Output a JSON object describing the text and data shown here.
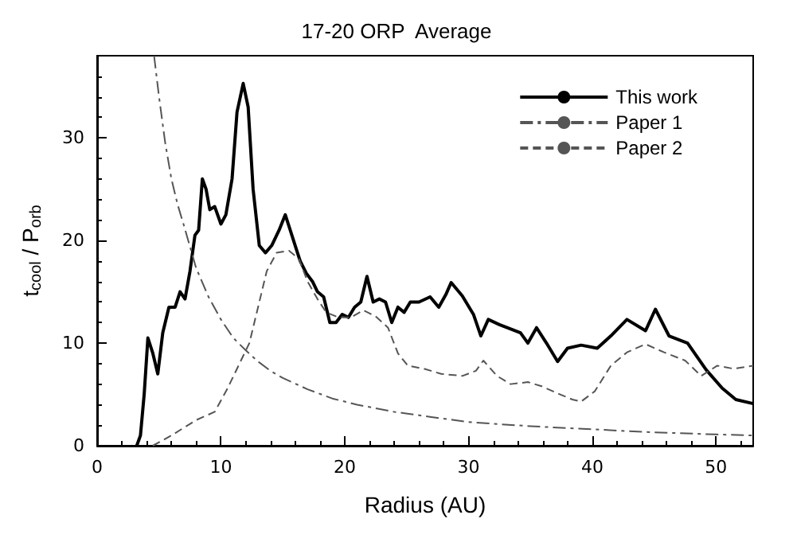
{
  "chart_data": {
    "type": "line",
    "title": "17-20 ORP  Average",
    "xlabel": "Radius (AU)",
    "ylabel": "t$_{cool}$ / P$_{orb}$",
    "xlim": [
      0,
      53
    ],
    "xticks": [
      0,
      10,
      20,
      30,
      40,
      50
    ],
    "ylim": [
      0,
      38
    ],
    "yticks": [
      0,
      10,
      20,
      30
    ],
    "grid": false,
    "legend": "top right",
    "marker": "none",
    "series": [
      {
        "name": "This work",
        "color": "#000000",
        "line_style": "solid",
        "x": [
          3.2,
          3.5,
          3.8,
          4.1,
          4.5,
          4.9,
          5.3,
          5.8,
          6.3,
          6.7,
          7.1,
          7.5,
          7.9,
          8.2,
          8.5,
          8.8,
          9.1,
          9.5,
          10,
          10.4,
          10.9,
          11.3,
          11.8,
          12.2,
          12.6,
          13.1,
          13.6,
          14.1,
          14.7,
          15.2,
          15.6,
          16,
          16.4,
          16.9,
          17.4,
          17.8,
          18.3,
          18.8,
          19.3,
          19.8,
          20.3,
          20.8,
          21.3,
          21.8,
          22.3,
          22.8,
          23.3,
          23.8,
          24.3,
          24.8,
          25.3,
          26,
          26.9,
          27.6,
          28.2,
          28.6,
          29.5,
          30.4,
          31,
          31.6,
          32.5,
          34.2,
          34.8,
          35.5,
          36.3,
          37.2,
          38,
          39.1,
          40.4,
          41.5,
          42.8,
          44.3,
          45.1,
          46.2,
          47.7,
          49.2,
          50.5,
          51.6,
          53
        ],
        "values": [
          0,
          1,
          5,
          10.5,
          9,
          7,
          11,
          13.5,
          13.5,
          15,
          14.3,
          17,
          20.5,
          21,
          26,
          25,
          23,
          23.3,
          21.6,
          22.5,
          26,
          32.5,
          35.3,
          33,
          25,
          19.5,
          18.8,
          19.5,
          21,
          22.5,
          21,
          19.5,
          18,
          16.8,
          16,
          15,
          14.5,
          12,
          12,
          12.8,
          12.5,
          13.5,
          14,
          16.5,
          14,
          14.3,
          14,
          12,
          13.5,
          13,
          14,
          14,
          14.5,
          13.5,
          14.8,
          15.9,
          14.6,
          12.8,
          10.7,
          12.3,
          11.8,
          11,
          10,
          11.5,
          10,
          8.2,
          9.5,
          9.8,
          9.5,
          10.7,
          12.3,
          11.2,
          13.3,
          10.7,
          10,
          7.4,
          5.6,
          4.5,
          4.1
        ]
      },
      {
        "name": "Paper 1",
        "color": "#555555",
        "line_style": "dashdot",
        "x": [
          4.6,
          5,
          5.5,
          6,
          6.5,
          7,
          8,
          9,
          10,
          11,
          12,
          13,
          14,
          15,
          17,
          19,
          21,
          24,
          27,
          30,
          35,
          40,
          45,
          50,
          53
        ],
        "values": [
          38,
          34,
          29.5,
          26,
          23.5,
          21.5,
          17.3,
          14.5,
          12.3,
          10.5,
          9.3,
          8.2,
          7.3,
          6.6,
          5.5,
          4.6,
          4,
          3.3,
          2.8,
          2.3,
          1.9,
          1.6,
          1.3,
          1.1,
          1
        ]
      },
      {
        "name": "Paper 2",
        "color": "#555555",
        "line_style": "dashed",
        "x": [
          4.5,
          6,
          8,
          9.5,
          10.5,
          11.5,
          12.3,
          13,
          13.7,
          14.5,
          15.5,
          16.3,
          17,
          17.8,
          18.5,
          19.5,
          20.5,
          21.5,
          22.5,
          23.5,
          24.3,
          25.1,
          26.4,
          27.8,
          29.5,
          30.6,
          31.2,
          32.3,
          33.4,
          34.8,
          35.9,
          37.2,
          38.4,
          39.1,
          40.2,
          41.5,
          42.8,
          44.3,
          45.8,
          47.5,
          48.8,
          50.1,
          51.4,
          53
        ],
        "values": [
          0,
          1,
          2.5,
          3.3,
          5.5,
          8,
          10,
          13.5,
          17,
          18.8,
          19,
          18.2,
          16,
          14.3,
          13,
          12.5,
          12.5,
          13.2,
          12.6,
          11.5,
          9,
          7.8,
          7.5,
          7,
          6.8,
          7.3,
          8.3,
          6.8,
          6,
          6.2,
          5.8,
          5.1,
          4.5,
          4.3,
          5.3,
          7.8,
          9.1,
          9.9,
          9.1,
          8.3,
          6.8,
          7.8,
          7.5,
          7.8
        ]
      }
    ]
  }
}
